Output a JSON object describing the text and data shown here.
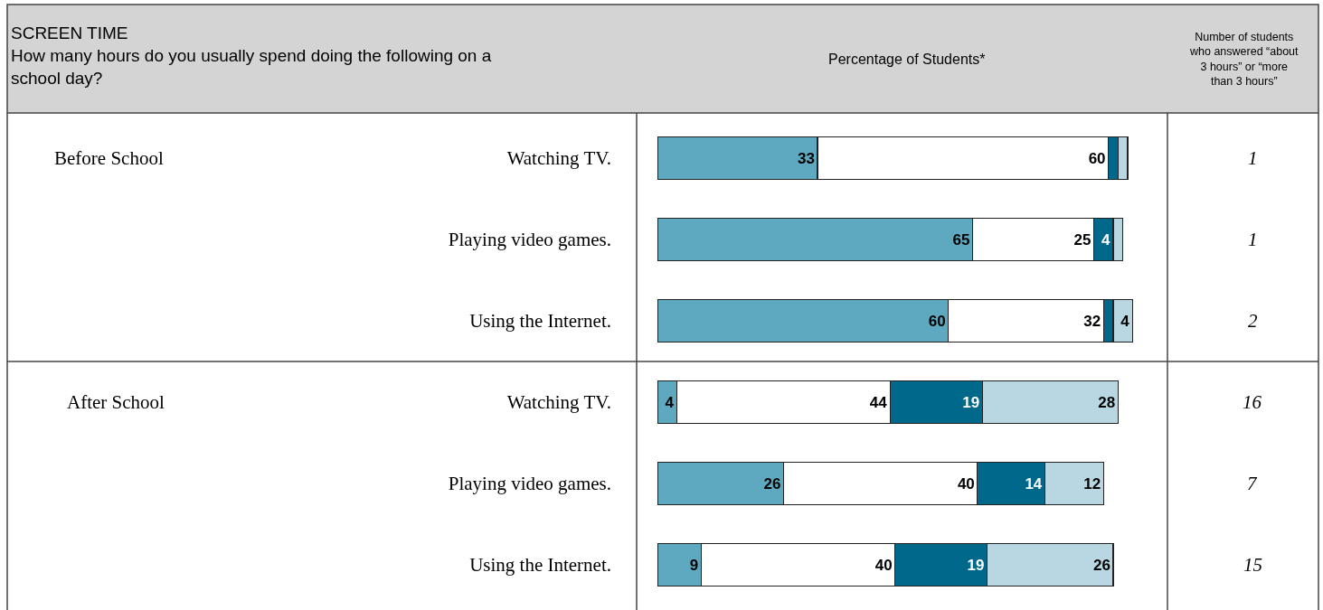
{
  "chart_data": {
    "type": "bar",
    "orientation": "horizontal",
    "stacked": true,
    "title": "SCREEN TIME",
    "subtitle": "How many hours do you usually spend doing the following on a school day?",
    "categories": [
      "Watching TV.",
      "Playing video games.",
      "Using the Internet.",
      "Watching TV.",
      "Playing video games.",
      "Using the Internet."
    ],
    "series": [
      {
        "color": "#5ea9c0",
        "values": [
          33,
          65,
          60,
          4,
          26,
          9
        ],
        "value_labels": [
          "33",
          "65",
          "60",
          "4",
          "26",
          "9"
        ]
      },
      {
        "color": "#ffffff",
        "values": [
          60,
          25,
          32,
          44,
          40,
          40
        ],
        "value_labels": [
          "60",
          "25",
          "32",
          "44",
          "40",
          "40"
        ]
      },
      {
        "color": "#00688b",
        "values": [
          2,
          4,
          2,
          19,
          14,
          19
        ],
        "value_labels": [
          null,
          "4",
          null,
          "19",
          "14",
          "19"
        ]
      },
      {
        "color": "#b8d7e2",
        "values": [
          2,
          2,
          4,
          28,
          12,
          26
        ],
        "value_labels": [
          null,
          null,
          "4",
          "28",
          "12",
          "26"
        ]
      }
    ],
    "tick_labels": "y",
    "annotations": [
      "Percentage of Students*",
      "Number of students who answered “about 3 hours” or “more than 3 hours”",
      "Before School",
      "After School",
      "1",
      "1",
      "2",
      "16",
      "7",
      "15"
    ]
  }
}
